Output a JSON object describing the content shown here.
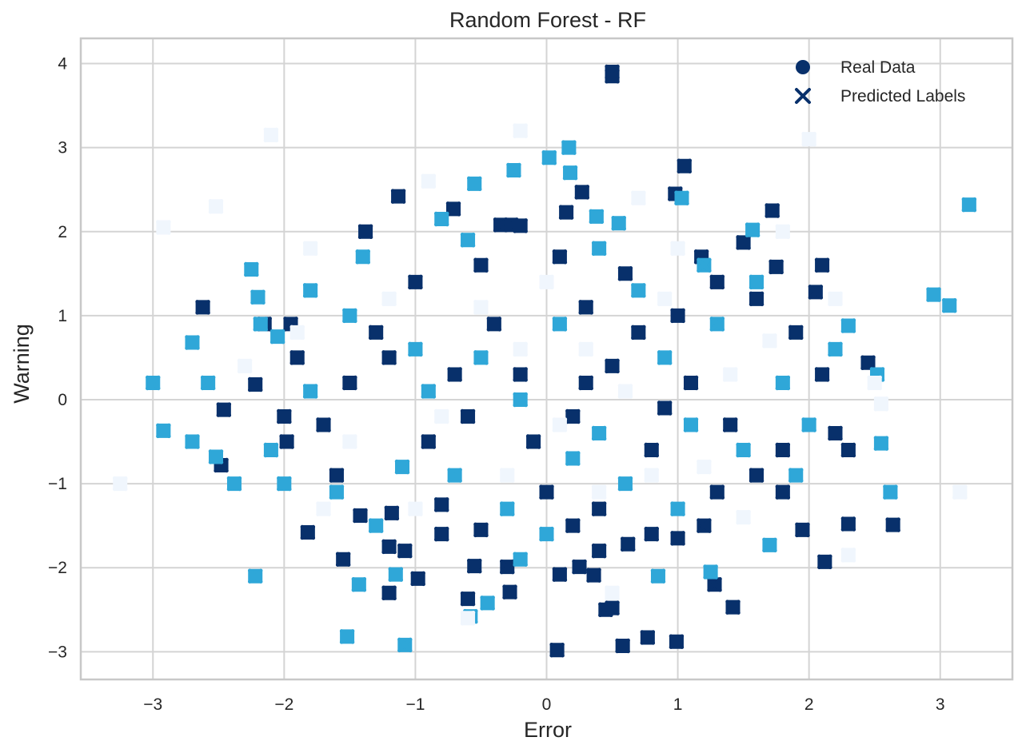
{
  "chart_data": {
    "type": "scatter",
    "title": "Random Forest - RF",
    "xlabel": "Error",
    "ylabel": "Warning",
    "xlim": [
      -3.55,
      3.55
    ],
    "ylim": [
      -3.33,
      4.3
    ],
    "xticks": [
      -3,
      -2,
      -1,
      0,
      1,
      2,
      3
    ],
    "yticks": [
      -3,
      -2,
      -1,
      0,
      1,
      2,
      3,
      4
    ],
    "grid": true,
    "legend": {
      "placement": "top-right",
      "entries": [
        {
          "label": "Real Data",
          "marker": "circle"
        },
        {
          "label": "Predicted Labels",
          "marker": "x"
        }
      ]
    },
    "marker_colors": [
      "#08306b",
      "#2fa7d8",
      "#f0f6fd"
    ],
    "legend_color": "#08306b",
    "series": [
      {
        "class_color": "#08306b",
        "points": [
          [
            0.5,
            3.9
          ],
          [
            0.5,
            3.85
          ],
          [
            1.05,
            2.78
          ],
          [
            0.98,
            2.45
          ],
          [
            -1.13,
            2.42
          ],
          [
            0.27,
            2.47
          ],
          [
            -0.71,
            2.27
          ],
          [
            0.15,
            2.23
          ],
          [
            1.72,
            2.25
          ],
          [
            -1.38,
            2.0
          ],
          [
            -0.35,
            2.08
          ],
          [
            -0.27,
            2.08
          ],
          [
            -0.2,
            2.07
          ],
          [
            1.5,
            1.87
          ],
          [
            1.18,
            1.7
          ],
          [
            1.75,
            1.58
          ],
          [
            2.1,
            1.6
          ],
          [
            -2.62,
            1.1
          ],
          [
            -2.15,
            0.9
          ],
          [
            -1.95,
            0.9
          ],
          [
            -2.22,
            0.18
          ],
          [
            -2.46,
            -0.12
          ],
          [
            -2.48,
            -0.78
          ],
          [
            -1.98,
            -0.5
          ],
          [
            -1.82,
            -1.58
          ],
          [
            -1.55,
            -1.9
          ],
          [
            -1.42,
            -1.38
          ],
          [
            -1.18,
            -1.35
          ],
          [
            -1.2,
            -1.75
          ],
          [
            -1.08,
            -1.8
          ],
          [
            -0.98,
            -2.13
          ],
          [
            -1.2,
            -2.3
          ],
          [
            -0.6,
            -2.37
          ],
          [
            -0.28,
            -2.29
          ],
          [
            0.1,
            -2.08
          ],
          [
            0.25,
            -1.99
          ],
          [
            0.36,
            -2.09
          ],
          [
            0.45,
            -2.5
          ],
          [
            0.5,
            -2.48
          ],
          [
            0.58,
            -2.93
          ],
          [
            0.77,
            -2.83
          ],
          [
            0.08,
            -2.98
          ],
          [
            0.99,
            -2.88
          ],
          [
            1.28,
            -2.2
          ],
          [
            1.42,
            -2.47
          ],
          [
            2.12,
            -1.93
          ],
          [
            2.3,
            -1.48
          ],
          [
            2.64,
            -1.49
          ],
          [
            1.95,
            -1.55
          ],
          [
            2.45,
            0.44
          ],
          [
            2.05,
            1.28
          ],
          [
            1.0,
            -1.65
          ],
          [
            0.8,
            -1.6
          ],
          [
            -0.55,
            -1.98
          ],
          [
            -0.3,
            -1.99
          ],
          [
            0.62,
            -1.72
          ],
          [
            0.4,
            -1.8
          ],
          [
            -0.8,
            -1.25
          ],
          [
            -0.5,
            -1.55
          ],
          [
            0.2,
            -1.5
          ],
          [
            1.2,
            -1.5
          ],
          [
            1.6,
            -0.9
          ],
          [
            1.8,
            -0.6
          ],
          [
            2.3,
            -0.6
          ],
          [
            -1.7,
            -0.3
          ],
          [
            -1.5,
            0.2
          ],
          [
            -1.3,
            0.8
          ],
          [
            -1.0,
            1.4
          ],
          [
            -0.5,
            1.6
          ],
          [
            0.1,
            1.7
          ],
          [
            0.6,
            1.5
          ],
          [
            1.3,
            1.4
          ],
          [
            1.6,
            1.2
          ],
          [
            1.9,
            0.8
          ],
          [
            2.1,
            0.3
          ],
          [
            -0.9,
            -0.5
          ],
          [
            -0.6,
            -0.2
          ],
          [
            -0.2,
            0.3
          ],
          [
            0.2,
            -0.2
          ],
          [
            0.5,
            0.4
          ],
          [
            0.8,
            -0.6
          ],
          [
            1.1,
            0.2
          ],
          [
            1.4,
            -0.3
          ],
          [
            -1.2,
            0.5
          ],
          [
            -0.4,
            0.9
          ],
          [
            0.3,
            1.1
          ],
          [
            0.7,
            0.8
          ],
          [
            1.0,
            1.0
          ],
          [
            -1.6,
            -0.9
          ],
          [
            -0.8,
            -1.6
          ],
          [
            0.0,
            -1.1
          ],
          [
            0.4,
            -1.3
          ],
          [
            1.3,
            -1.1
          ],
          [
            -2.0,
            -0.2
          ],
          [
            -1.9,
            0.5
          ],
          [
            2.2,
            -0.4
          ],
          [
            0.9,
            -0.1
          ],
          [
            -0.1,
            -0.5
          ],
          [
            0.3,
            0.2
          ],
          [
            -0.7,
            0.3
          ],
          [
            1.8,
            -1.1
          ]
        ]
      },
      {
        "class_color": "#2fa7d8",
        "points": [
          [
            -3.0,
            0.2
          ],
          [
            -2.92,
            -0.37
          ],
          [
            -2.7,
            -0.5
          ],
          [
            -2.7,
            0.68
          ],
          [
            -2.58,
            0.2
          ],
          [
            -2.52,
            -0.68
          ],
          [
            -2.38,
            -1.0
          ],
          [
            -2.25,
            1.55
          ],
          [
            -2.2,
            1.22
          ],
          [
            -2.18,
            0.9
          ],
          [
            -2.22,
            -2.1
          ],
          [
            -2.0,
            -1.0
          ],
          [
            -1.52,
            -2.82
          ],
          [
            -1.08,
            -2.92
          ],
          [
            -0.58,
            -2.58
          ],
          [
            -0.45,
            -2.42
          ],
          [
            -1.43,
            -2.2
          ],
          [
            -1.15,
            -2.08
          ],
          [
            0.17,
            3.0
          ],
          [
            0.18,
            2.7
          ],
          [
            -0.25,
            2.73
          ],
          [
            -0.55,
            2.57
          ],
          [
            0.02,
            2.88
          ],
          [
            -0.8,
            2.15
          ],
          [
            3.22,
            2.32
          ],
          [
            2.95,
            1.25
          ],
          [
            3.07,
            1.12
          ],
          [
            2.3,
            0.88
          ],
          [
            2.52,
            0.3
          ],
          [
            2.55,
            -0.52
          ],
          [
            2.62,
            -1.1
          ],
          [
            1.7,
            -1.73
          ],
          [
            0.38,
            2.18
          ],
          [
            0.55,
            2.1
          ],
          [
            1.03,
            2.4
          ],
          [
            1.57,
            2.02
          ],
          [
            -1.8,
            1.3
          ],
          [
            -2.05,
            0.75
          ],
          [
            -1.6,
            -1.1
          ],
          [
            -0.2,
            -1.9
          ],
          [
            0.85,
            -2.1
          ],
          [
            1.25,
            -2.05
          ],
          [
            1.9,
            -0.9
          ],
          [
            2.2,
            0.6
          ],
          [
            -1.4,
            1.7
          ],
          [
            -0.6,
            1.9
          ],
          [
            0.4,
            1.8
          ],
          [
            1.2,
            1.6
          ],
          [
            -1.1,
            -0.8
          ],
          [
            -0.3,
            -1.3
          ],
          [
            0.6,
            -1.0
          ],
          [
            1.5,
            -0.6
          ],
          [
            -1.8,
            0.1
          ],
          [
            1.8,
            0.2
          ],
          [
            -0.5,
            0.5
          ],
          [
            0.1,
            0.9
          ],
          [
            0.9,
            0.5
          ],
          [
            -0.9,
            0.1
          ],
          [
            0.4,
            -0.4
          ],
          [
            1.3,
            0.9
          ],
          [
            -1.3,
            -1.5
          ],
          [
            0.0,
            -1.6
          ],
          [
            1.0,
            -1.3
          ],
          [
            -2.1,
            -0.6
          ],
          [
            2.0,
            -0.3
          ],
          [
            -0.2,
            0.0
          ],
          [
            0.7,
            1.3
          ],
          [
            -1.5,
            1.0
          ],
          [
            1.6,
            1.4
          ],
          [
            -0.7,
            -0.9
          ],
          [
            0.2,
            -0.7
          ],
          [
            1.1,
            -0.3
          ],
          [
            -1.0,
            0.6
          ]
        ]
      },
      {
        "class_color": "#f0f6fd",
        "points": [
          [
            -2.1,
            3.15
          ],
          [
            -0.2,
            3.2
          ],
          [
            2.0,
            3.1
          ],
          [
            -2.92,
            2.05
          ],
          [
            -2.52,
            2.3
          ],
          [
            -3.25,
            -1.0
          ],
          [
            3.15,
            -1.1
          ],
          [
            2.3,
            -1.85
          ],
          [
            2.5,
            0.2
          ],
          [
            2.55,
            -0.05
          ],
          [
            -0.9,
            2.6
          ],
          [
            0.7,
            2.4
          ],
          [
            1.8,
            2.0
          ],
          [
            -1.8,
            1.8
          ],
          [
            -2.3,
            0.4
          ],
          [
            -1.7,
            -1.3
          ],
          [
            -0.6,
            -2.6
          ],
          [
            0.5,
            -2.3
          ],
          [
            1.5,
            -1.4
          ],
          [
            2.2,
            1.2
          ],
          [
            -1.2,
            1.2
          ],
          [
            0.0,
            1.4
          ],
          [
            1.0,
            1.8
          ],
          [
            -0.8,
            -0.2
          ],
          [
            0.3,
            0.6
          ],
          [
            0.8,
            -0.9
          ],
          [
            -0.3,
            -0.9
          ],
          [
            1.4,
            0.3
          ],
          [
            -1.5,
            -0.5
          ],
          [
            0.6,
            0.1
          ],
          [
            -0.5,
            1.1
          ],
          [
            1.2,
            -0.8
          ],
          [
            -1.0,
            -1.3
          ],
          [
            0.1,
            -0.3
          ],
          [
            1.7,
            0.7
          ],
          [
            -1.9,
            0.8
          ],
          [
            0.9,
            1.2
          ],
          [
            -0.2,
            0.6
          ],
          [
            0.4,
            -1.1
          ]
        ]
      }
    ]
  }
}
